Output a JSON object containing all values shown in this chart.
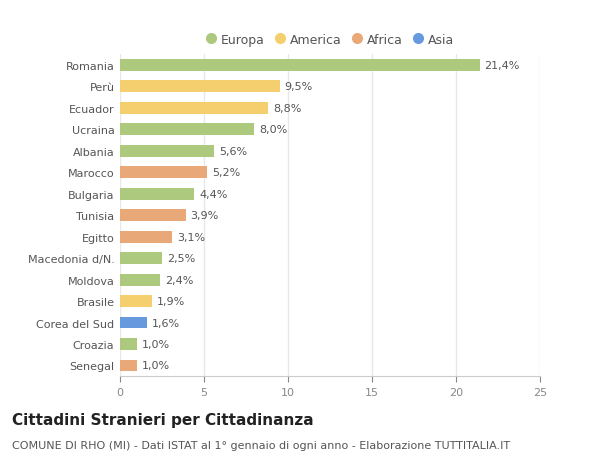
{
  "categories": [
    "Romania",
    "Perù",
    "Ecuador",
    "Ucraina",
    "Albania",
    "Marocco",
    "Bulgaria",
    "Tunisia",
    "Egitto",
    "Macedonia d/N.",
    "Moldova",
    "Brasile",
    "Corea del Sud",
    "Croazia",
    "Senegal"
  ],
  "values": [
    21.4,
    9.5,
    8.8,
    8.0,
    5.6,
    5.2,
    4.4,
    3.9,
    3.1,
    2.5,
    2.4,
    1.9,
    1.6,
    1.0,
    1.0
  ],
  "labels": [
    "21,4%",
    "9,5%",
    "8,8%",
    "8,0%",
    "5,6%",
    "5,2%",
    "4,4%",
    "3,9%",
    "3,1%",
    "2,5%",
    "2,4%",
    "1,9%",
    "1,6%",
    "1,0%",
    "1,0%"
  ],
  "continents": [
    "Europa",
    "America",
    "America",
    "Europa",
    "Europa",
    "Africa",
    "Europa",
    "Africa",
    "Africa",
    "Europa",
    "Europa",
    "America",
    "Asia",
    "Europa",
    "Africa"
  ],
  "continent_colors": {
    "Europa": "#adc97e",
    "America": "#f5cf6e",
    "Africa": "#e8a878",
    "Asia": "#6699dd"
  },
  "legend_order": [
    "Europa",
    "America",
    "Africa",
    "Asia"
  ],
  "title": "Cittadini Stranieri per Cittadinanza",
  "subtitle": "COMUNE DI RHO (MI) - Dati ISTAT al 1° gennaio di ogni anno - Elaborazione TUTTITALIA.IT",
  "xlim": [
    0,
    25
  ],
  "xticks": [
    0,
    5,
    10,
    15,
    20,
    25
  ],
  "background_color": "#ffffff",
  "bar_height": 0.55,
  "grid_color": "#e8e8e8",
  "title_fontsize": 11,
  "subtitle_fontsize": 8,
  "label_fontsize": 8,
  "tick_fontsize": 8,
  "legend_fontsize": 9
}
